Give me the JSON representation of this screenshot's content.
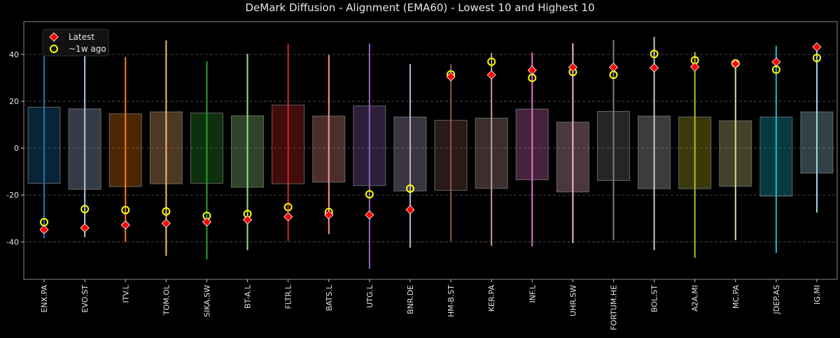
{
  "chart_data": {
    "type": "range-box",
    "title": "DeMark Diffusion - Alignment (EMA60) - Lowest 10 and Highest 10",
    "xlabel": "",
    "ylabel": "",
    "ylim": [
      -56,
      54
    ],
    "yticks": [
      -40,
      -20,
      0,
      20,
      40
    ],
    "grid": "horizontal dashed",
    "legend": {
      "placement": "top-left",
      "entries": [
        "Latest",
        "~1w ago"
      ]
    },
    "marker_colors": {
      "latest": "#ff0000",
      "week_ago": "#ffff00"
    },
    "categories": [
      "ENX.PA",
      "EVO.ST",
      "ITV.L",
      "TOM.OL",
      "SIKA.SW",
      "BT-A.L",
      "FLTR.L",
      "BATS.L",
      "UTG.L",
      "BNR.DE",
      "HM-B.ST",
      "KER.PA",
      "INF.L",
      "UHR.SW",
      "FORTUM.HE",
      "BOL.ST",
      "A2A.MI",
      "MC.PA",
      "JDEP.AS",
      "IG.MI"
    ],
    "colors": [
      "#1f77b4",
      "#aec7e8",
      "#ff7f0e",
      "#ffbb78",
      "#2ca02c",
      "#98df8a",
      "#d62728",
      "#ff9896",
      "#9467bd",
      "#c5b0d5",
      "#8c564b",
      "#c49c94",
      "#e377c2",
      "#f7b6d2",
      "#7f7f7f",
      "#c7c7c7",
      "#bcbd22",
      "#dbdb8d",
      "#17becf",
      "#9edae5"
    ],
    "box_high": [
      17.5,
      16.8,
      14.7,
      15.5,
      15.0,
      13.8,
      18.4,
      13.7,
      18.0,
      13.3,
      11.9,
      12.8,
      16.7,
      11.1,
      15.7,
      13.7,
      13.3,
      11.7,
      13.3,
      15.5
    ],
    "box_low": [
      -15.0,
      -17.6,
      -16.4,
      -15.2,
      -15.0,
      -16.7,
      -15.2,
      -14.5,
      -16.0,
      -18.3,
      -18.0,
      -17.2,
      -13.5,
      -18.7,
      -13.8,
      -17.3,
      -17.3,
      -16.3,
      -20.5,
      -10.7
    ],
    "whisker_high": [
      45.5,
      49.0,
      38.8,
      46.0,
      37.0,
      40.3,
      44.6,
      39.8,
      44.6,
      35.9,
      35.9,
      40.7,
      40.8,
      44.8,
      46.1,
      47.5,
      41.0,
      37.7,
      43.7,
      43.0
    ],
    "whisker_low": [
      -38.5,
      -38.0,
      -40.0,
      -46.0,
      -47.5,
      -43.6,
      -39.7,
      -36.7,
      -51.5,
      -42.5,
      -39.7,
      -41.7,
      -42.0,
      -40.5,
      -39.3,
      -43.5,
      -46.8,
      -39.3,
      -44.7,
      -27.5
    ],
    "series": [
      {
        "name": "Latest",
        "values": [
          -34.8,
          -34.0,
          -32.8,
          -32.1,
          -31.5,
          -30.6,
          -29.3,
          -28.5,
          -28.5,
          -26.3,
          30.5,
          31.3,
          33.3,
          34.5,
          34.5,
          34.3,
          34.7,
          36.0,
          36.8,
          43.2
        ]
      },
      {
        "name": "~1w ago",
        "values": [
          -31.6,
          -26.0,
          -26.4,
          -27.0,
          -28.9,
          -28.1,
          -25.2,
          -27.3,
          -19.7,
          -17.3,
          31.5,
          36.9,
          30.0,
          32.5,
          31.3,
          40.2,
          37.5,
          36.2,
          33.5,
          38.5
        ]
      }
    ]
  }
}
